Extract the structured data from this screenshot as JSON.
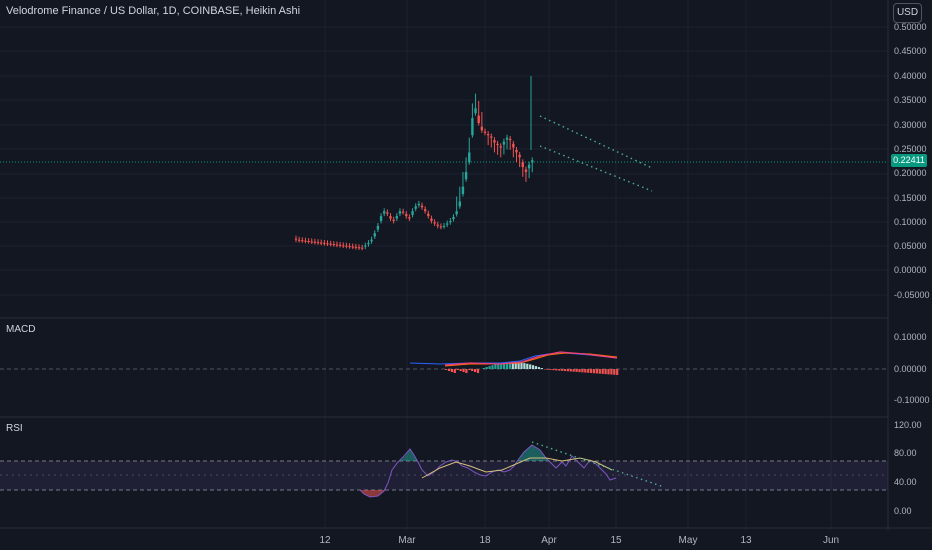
{
  "header": {
    "title": "Velodrome Finance / US Dollar, 1D, COINBASE, Heikin Ashi",
    "currency_button": "USD"
  },
  "price_axis": {
    "labels": [
      "0.50000",
      "0.45000",
      "0.40000",
      "0.35000",
      "0.30000",
      "0.25000",
      "0.20000",
      "0.15000",
      "0.10000",
      "0.05000",
      "0.00000",
      "-0.05000"
    ],
    "current_price": "0.22411"
  },
  "macd_pane": {
    "label": "MACD",
    "axis_labels": [
      "0.10000",
      "0.00000",
      "-0.10000"
    ]
  },
  "rsi_pane": {
    "label": "RSI",
    "axis_labels": [
      "120.00",
      "80.00",
      "40.00",
      "0.00"
    ]
  },
  "time_axis": {
    "labels": [
      "12",
      "Mar",
      "18",
      "Apr",
      "15",
      "May",
      "13",
      "Jun"
    ]
  },
  "colors": {
    "background": "#131722",
    "up": "#26a69a",
    "down": "#ef5350",
    "macd_line": "#2962ff",
    "signal_line": "#ff6d00",
    "rsi_line": "#7e57c2",
    "trendline": "#4caf8d"
  },
  "chart_data": [
    {
      "type": "candlestick",
      "style": "Heikin Ashi",
      "interval": "1D",
      "exchange": "COINBASE",
      "ylim": [
        -0.05,
        0.5
      ],
      "last_price": 0.22411,
      "segments": [
        {
          "period": "mid Feb to late Feb",
          "approx_level": [
            0.045,
            0.065
          ],
          "trend": "slow decline"
        },
        {
          "period": "late Feb to early Mar",
          "approx_level": [
            0.05,
            0.15
          ],
          "trend": "breakout"
        },
        {
          "period": "early Mar to 18 Mar",
          "approx_level": [
            0.08,
            0.14
          ],
          "trend": "range"
        },
        {
          "period": "18 Mar to late Mar",
          "approx_level": [
            0.1,
            0.4
          ],
          "trend": "sharp rally, high near 0.40"
        },
        {
          "period": "late Mar to mid Apr",
          "approx_level": [
            0.18,
            0.32
          ],
          "trend": "descending channel"
        }
      ],
      "channel": {
        "upper": [
          0.31,
          0.21
        ],
        "lower": [
          0.26,
          0.16
        ]
      }
    },
    {
      "type": "line",
      "indicator": "MACD",
      "ylim": [
        -0.1,
        0.1
      ]
    },
    {
      "type": "line",
      "indicator": "RSI",
      "ylim": [
        0,
        120
      ],
      "bands": [
        30,
        70
      ]
    }
  ]
}
